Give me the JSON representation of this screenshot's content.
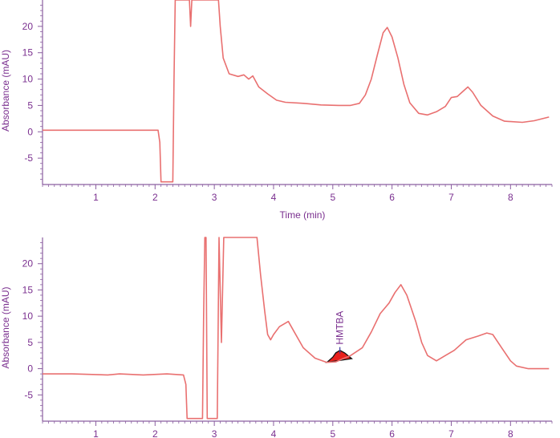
{
  "colors": {
    "axis": "#8b5fa0",
    "label_text": "#7a2f8f",
    "trace": "#e97070",
    "peak_fill": "#e8201c",
    "peak_outline": "#111111",
    "peak_marker": "#3a3aa0"
  },
  "chart_data": [
    {
      "type": "line",
      "ylabel": "Absorbance (mAU)",
      "xlabel": "Time (min)",
      "xlim": [
        0.1,
        8.7
      ],
      "ylim": [
        -10,
        25
      ],
      "x_ticks": [
        "1",
        "2",
        "3",
        "4",
        "5",
        "6",
        "7",
        "8"
      ],
      "y_ticks": [
        "-5",
        "0",
        "5",
        "10",
        "15",
        "20"
      ],
      "grid": false,
      "series": [
        {
          "points": [
            [
              0.1,
              0.3
            ],
            [
              1.0,
              0.3
            ],
            [
              1.9,
              0.3
            ],
            [
              2.05,
              0.3
            ],
            [
              2.08,
              -2
            ],
            [
              2.1,
              -9.5
            ],
            [
              2.3,
              -9.5
            ],
            [
              2.32,
              10
            ],
            [
              2.34,
              25
            ],
            [
              2.36,
              25
            ],
            [
              2.38,
              25
            ],
            [
              2.58,
              25
            ],
            [
              2.6,
              20
            ],
            [
              2.62,
              25
            ],
            [
              2.64,
              25
            ],
            [
              2.9,
              25
            ],
            [
              3.07,
              25
            ],
            [
              3.1,
              20
            ],
            [
              3.15,
              14
            ],
            [
              3.25,
              11
            ],
            [
              3.4,
              10.5
            ],
            [
              3.5,
              10.8
            ],
            [
              3.58,
              10
            ],
            [
              3.65,
              10.6
            ],
            [
              3.75,
              8.5
            ],
            [
              3.9,
              7.2
            ],
            [
              4.05,
              6
            ],
            [
              4.2,
              5.6
            ],
            [
              4.5,
              5.4
            ],
            [
              4.8,
              5.1
            ],
            [
              5.1,
              5
            ],
            [
              5.3,
              5
            ],
            [
              5.45,
              5.4
            ],
            [
              5.55,
              7
            ],
            [
              5.65,
              10
            ],
            [
              5.75,
              14.5
            ],
            [
              5.85,
              18.8
            ],
            [
              5.92,
              19.8
            ],
            [
              6.0,
              18
            ],
            [
              6.1,
              14
            ],
            [
              6.2,
              9
            ],
            [
              6.3,
              5.5
            ],
            [
              6.45,
              3.5
            ],
            [
              6.6,
              3.2
            ],
            [
              6.75,
              3.8
            ],
            [
              6.9,
              4.8
            ],
            [
              7.0,
              6.5
            ],
            [
              7.1,
              6.7
            ],
            [
              7.18,
              7.5
            ],
            [
              7.28,
              8.5
            ],
            [
              7.36,
              7.5
            ],
            [
              7.5,
              5
            ],
            [
              7.7,
              3
            ],
            [
              7.9,
              2
            ],
            [
              8.2,
              1.8
            ],
            [
              8.4,
              2.1
            ],
            [
              8.65,
              2.8
            ]
          ]
        }
      ]
    },
    {
      "type": "line",
      "ylabel": "Absorbance (mAU)",
      "xlabel": "",
      "xlim": [
        0.1,
        8.7
      ],
      "ylim": [
        -10,
        25
      ],
      "x_ticks": [
        "1",
        "2",
        "3",
        "4",
        "5",
        "6",
        "7",
        "8"
      ],
      "y_ticks": [
        "-5",
        "0",
        "5",
        "10",
        "15",
        "20"
      ],
      "grid": false,
      "annotations": [
        {
          "label": "HMTBA",
          "x": 5.12,
          "y": 3.2
        }
      ],
      "series": [
        {
          "points": [
            [
              0.1,
              -1
            ],
            [
              0.6,
              -1
            ],
            [
              1.2,
              -1.2
            ],
            [
              1.4,
              -1
            ],
            [
              1.8,
              -1.2
            ],
            [
              2.2,
              -1
            ],
            [
              2.48,
              -1.2
            ],
            [
              2.52,
              -3
            ],
            [
              2.54,
              -9.5
            ],
            [
              2.8,
              -9.5
            ],
            [
              2.82,
              10
            ],
            [
              2.84,
              25
            ],
            [
              2.86,
              25
            ],
            [
              2.88,
              -9.5
            ],
            [
              3.05,
              -9.5
            ],
            [
              3.08,
              25
            ],
            [
              3.12,
              5
            ],
            [
              3.16,
              25
            ],
            [
              3.72,
              25
            ],
            [
              3.78,
              18
            ],
            [
              3.85,
              11
            ],
            [
              3.9,
              6.5
            ],
            [
              3.95,
              5.5
            ],
            [
              4.0,
              6.5
            ],
            [
              4.1,
              8
            ],
            [
              4.25,
              9
            ],
            [
              4.35,
              7
            ],
            [
              4.5,
              4
            ],
            [
              4.7,
              2
            ],
            [
              4.9,
              1.2
            ],
            [
              5.05,
              1.3
            ],
            [
              5.15,
              1.8
            ],
            [
              5.3,
              2.5
            ],
            [
              5.5,
              4
            ],
            [
              5.65,
              7
            ],
            [
              5.8,
              10.5
            ],
            [
              5.95,
              12.5
            ],
            [
              6.05,
              14.5
            ],
            [
              6.15,
              16
            ],
            [
              6.25,
              14
            ],
            [
              6.4,
              9
            ],
            [
              6.5,
              5
            ],
            [
              6.6,
              2.5
            ],
            [
              6.75,
              1.5
            ],
            [
              6.9,
              2.5
            ],
            [
              7.05,
              3.5
            ],
            [
              7.25,
              5.5
            ],
            [
              7.45,
              6.2
            ],
            [
              7.6,
              6.8
            ],
            [
              7.7,
              6.5
            ],
            [
              7.85,
              4
            ],
            [
              8.0,
              1.5
            ],
            [
              8.1,
              0.5
            ],
            [
              8.3,
              0
            ],
            [
              8.65,
              0
            ]
          ]
        }
      ],
      "peak_area": [
        [
          4.9,
          1.2
        ],
        [
          5.0,
          2.2
        ],
        [
          5.05,
          3.0
        ],
        [
          5.12,
          3.5
        ],
        [
          5.2,
          3.0
        ],
        [
          5.32,
          1.9
        ]
      ]
    }
  ]
}
